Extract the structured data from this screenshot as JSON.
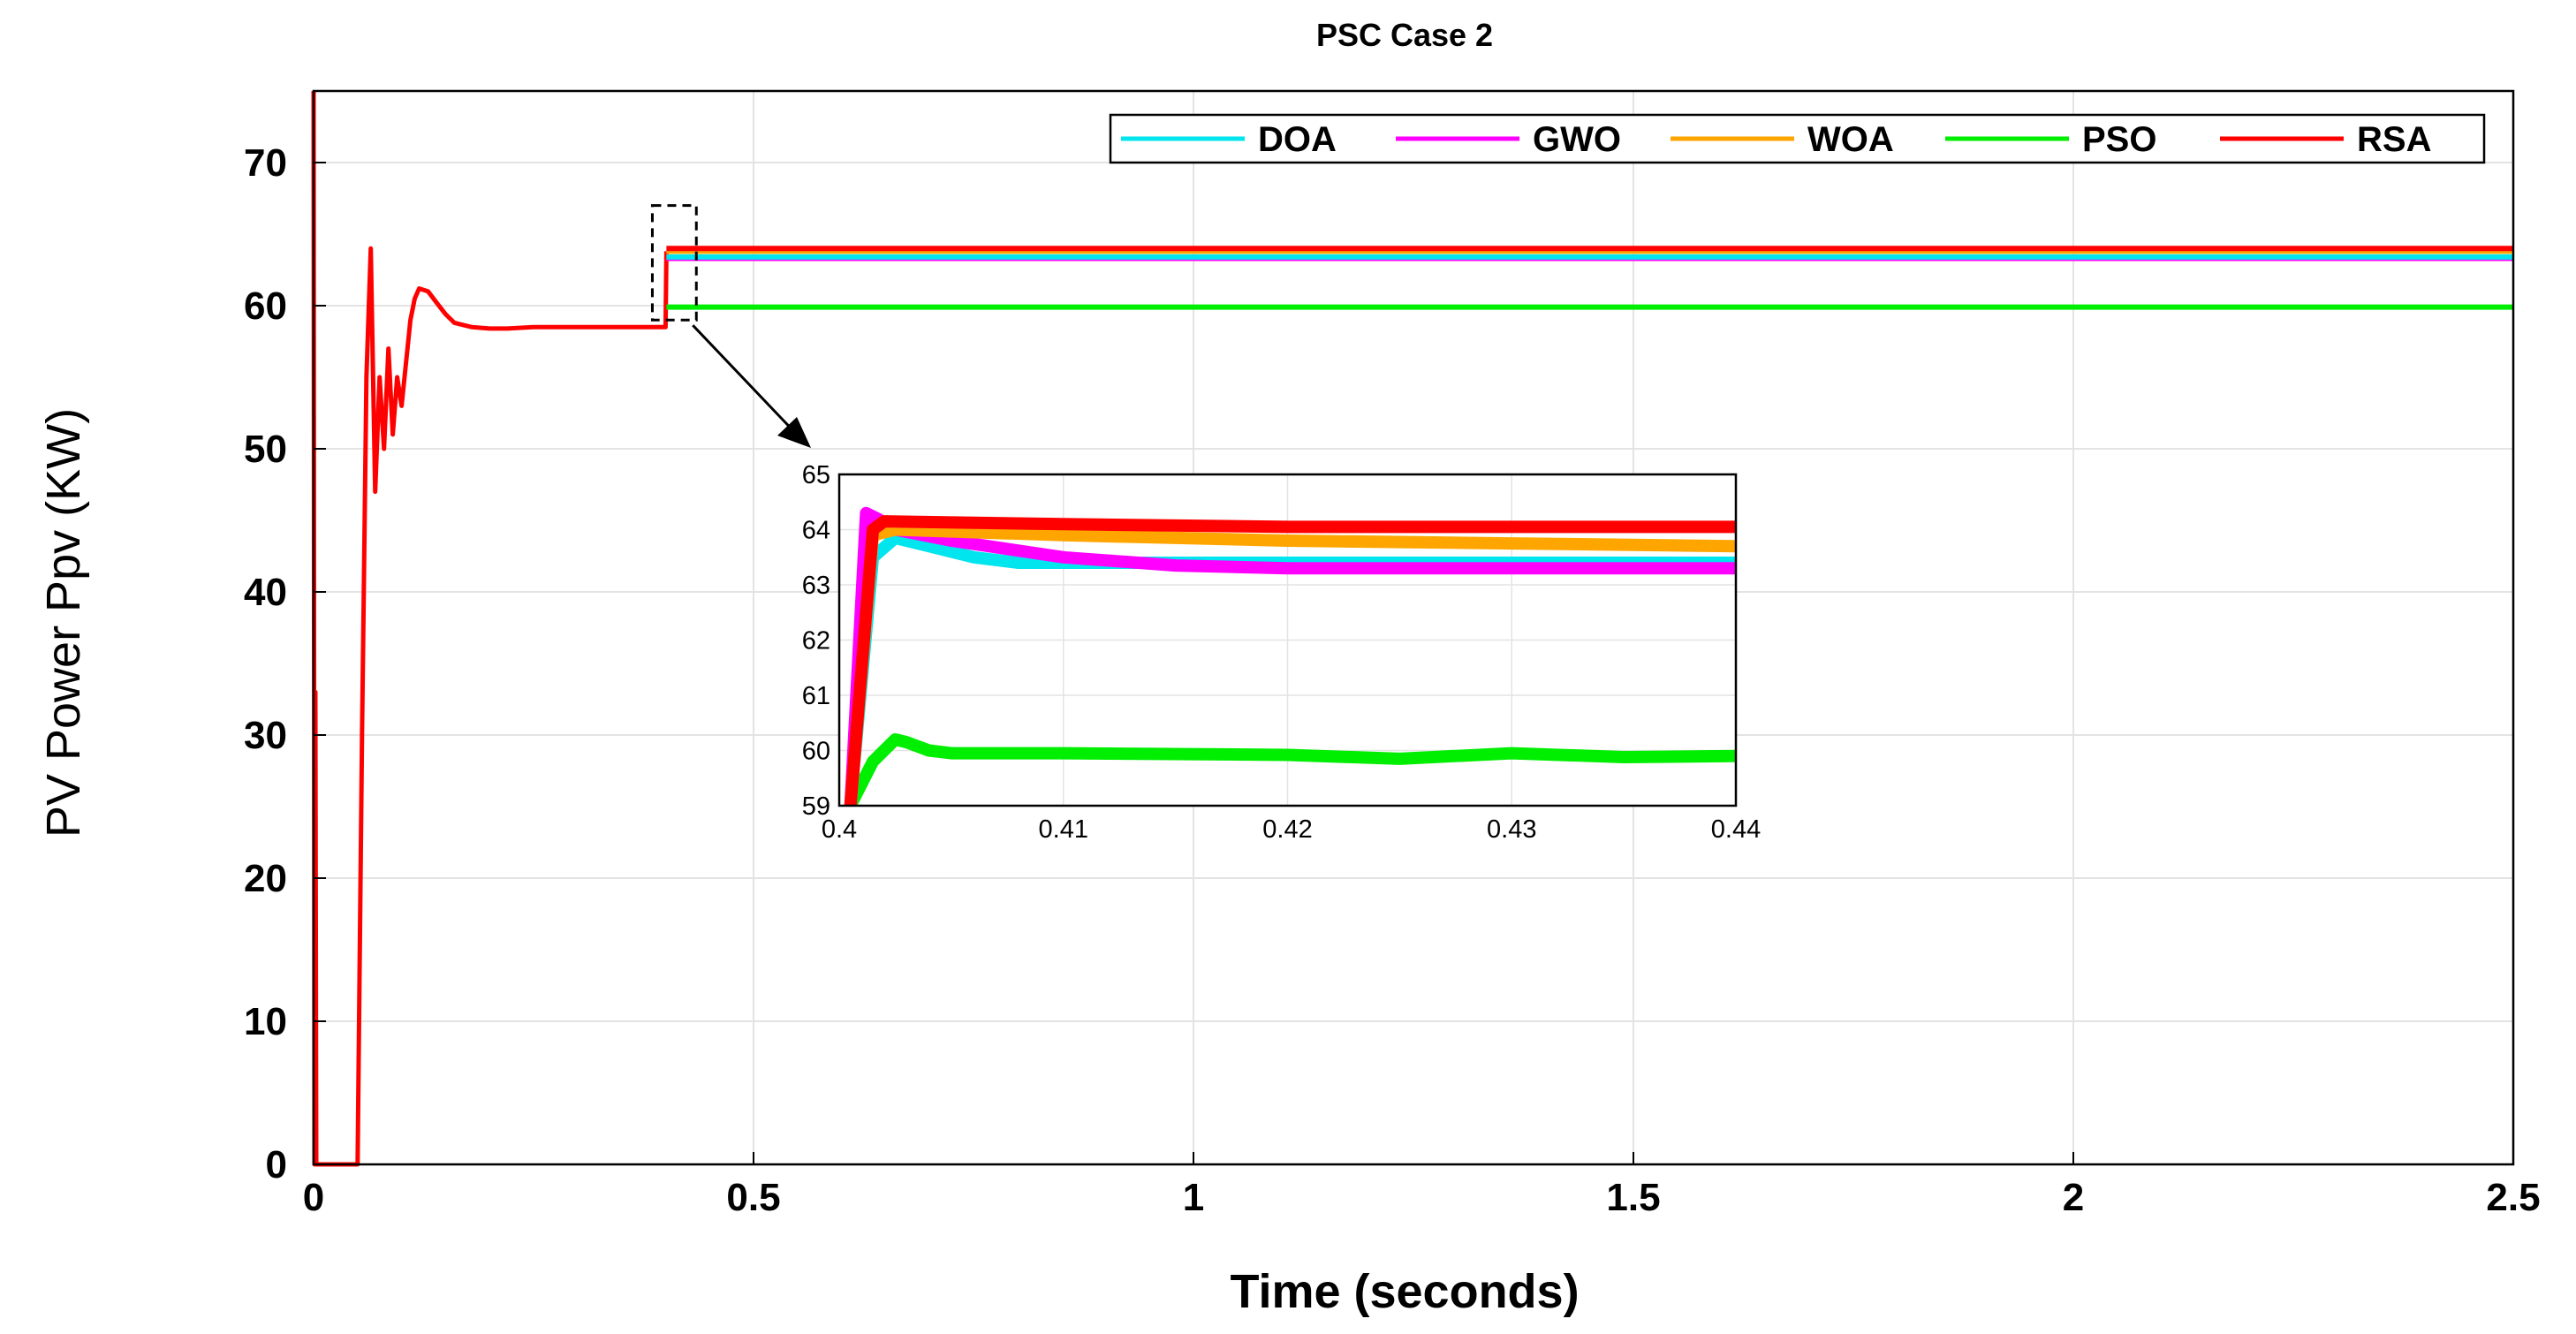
{
  "chart_data": {
    "type": "line",
    "title": "PSC Case 2",
    "xlabel": "Time (seconds)",
    "ylabel": "PV Power Ppv (KW)",
    "xlim": [
      0,
      2.5
    ],
    "ylim": [
      0,
      75
    ],
    "xticks": [
      "0",
      "0.5",
      "1",
      "1.5",
      "2",
      "2.5"
    ],
    "yticks": [
      "0",
      "10",
      "20",
      "30",
      "40",
      "50",
      "60",
      "70"
    ],
    "grid": true,
    "legend_position": "top-right",
    "series": [
      {
        "name": "DOA",
        "color": "#00e5ee"
      },
      {
        "name": "GWO",
        "color": "#ff00ff"
      },
      {
        "name": "WOA",
        "color": "#ffa500"
      },
      {
        "name": "PSO",
        "color": "#00ee00"
      },
      {
        "name": "RSA",
        "color": "#ff0000"
      }
    ],
    "main_start": {
      "x": [
        0,
        0.001,
        0.002,
        0.003,
        0.004,
        0.05,
        0.055,
        0.06,
        0.065,
        0.07,
        0.075,
        0.08,
        0.085,
        0.09,
        0.095,
        0.1,
        0.105,
        0.11,
        0.115,
        0.12,
        0.13,
        0.14,
        0.15,
        0.16,
        0.18,
        0.2,
        0.22,
        0.25,
        0.3,
        0.35,
        0.4,
        0.401
      ],
      "y": [
        75,
        0,
        33,
        0,
        0,
        0,
        30,
        55,
        64,
        47,
        55,
        50,
        57,
        51,
        55,
        53,
        56,
        59,
        60.5,
        61.2,
        61,
        60.2,
        59.4,
        58.8,
        58.5,
        58.4,
        58.4,
        58.5,
        58.5,
        58.5,
        58.5,
        63.8
      ]
    },
    "steady_state": [
      {
        "name": "DOA",
        "x": [
          0.401,
          2.5
        ],
        "y": [
          63.4,
          63.4
        ]
      },
      {
        "name": "GWO",
        "x": [
          0.401,
          2.5
        ],
        "y": [
          63.3,
          63.3
        ]
      },
      {
        "name": "WOA",
        "x": [
          0.401,
          2.5
        ],
        "y": [
          63.8,
          63.8
        ]
      },
      {
        "name": "PSO",
        "x": [
          0.401,
          2.5
        ],
        "y": [
          59.9,
          59.9
        ]
      },
      {
        "name": "RSA",
        "x": [
          0.401,
          2.5
        ],
        "y": [
          64.0,
          64.0
        ]
      }
    ],
    "inset": {
      "xlim": [
        0.4,
        0.44
      ],
      "ylim": [
        59,
        65
      ],
      "xticks": [
        "0.4",
        "0.41",
        "0.42",
        "0.43",
        "0.44"
      ],
      "yticks": [
        "59",
        "60",
        "61",
        "62",
        "63",
        "64",
        "65"
      ],
      "series": [
        {
          "name": "PSO",
          "x": [
            0.4005,
            0.4015,
            0.4025,
            0.403,
            0.404,
            0.405,
            0.41,
            0.42,
            0.425,
            0.43,
            0.435,
            0.44
          ],
          "y": [
            59,
            59.8,
            60.2,
            60.15,
            60,
            59.95,
            59.95,
            59.92,
            59.85,
            59.95,
            59.88,
            59.9
          ]
        },
        {
          "name": "DOA",
          "x": [
            0.4005,
            0.4015,
            0.4025,
            0.404,
            0.406,
            0.408,
            0.412,
            0.42,
            0.44
          ],
          "y": [
            59,
            63.5,
            63.85,
            63.7,
            63.5,
            63.4,
            63.4,
            63.4,
            63.4
          ]
        },
        {
          "name": "GWO",
          "x": [
            0.4005,
            0.4012,
            0.4017,
            0.4025,
            0.405,
            0.41,
            0.415,
            0.42,
            0.44
          ],
          "y": [
            59,
            64.3,
            64.2,
            64.0,
            63.8,
            63.5,
            63.35,
            63.3,
            63.3
          ]
        },
        {
          "name": "WOA",
          "x": [
            0.4005,
            0.4015,
            0.4025,
            0.41,
            0.42,
            0.43,
            0.44
          ],
          "y": [
            59,
            63.9,
            64.0,
            63.9,
            63.8,
            63.75,
            63.7
          ]
        },
        {
          "name": "RSA",
          "x": [
            0.4005,
            0.4015,
            0.402,
            0.41,
            0.42,
            0.43,
            0.44
          ],
          "y": [
            59,
            64.0,
            64.15,
            64.1,
            64.05,
            64.05,
            64.05
          ]
        }
      ]
    }
  }
}
